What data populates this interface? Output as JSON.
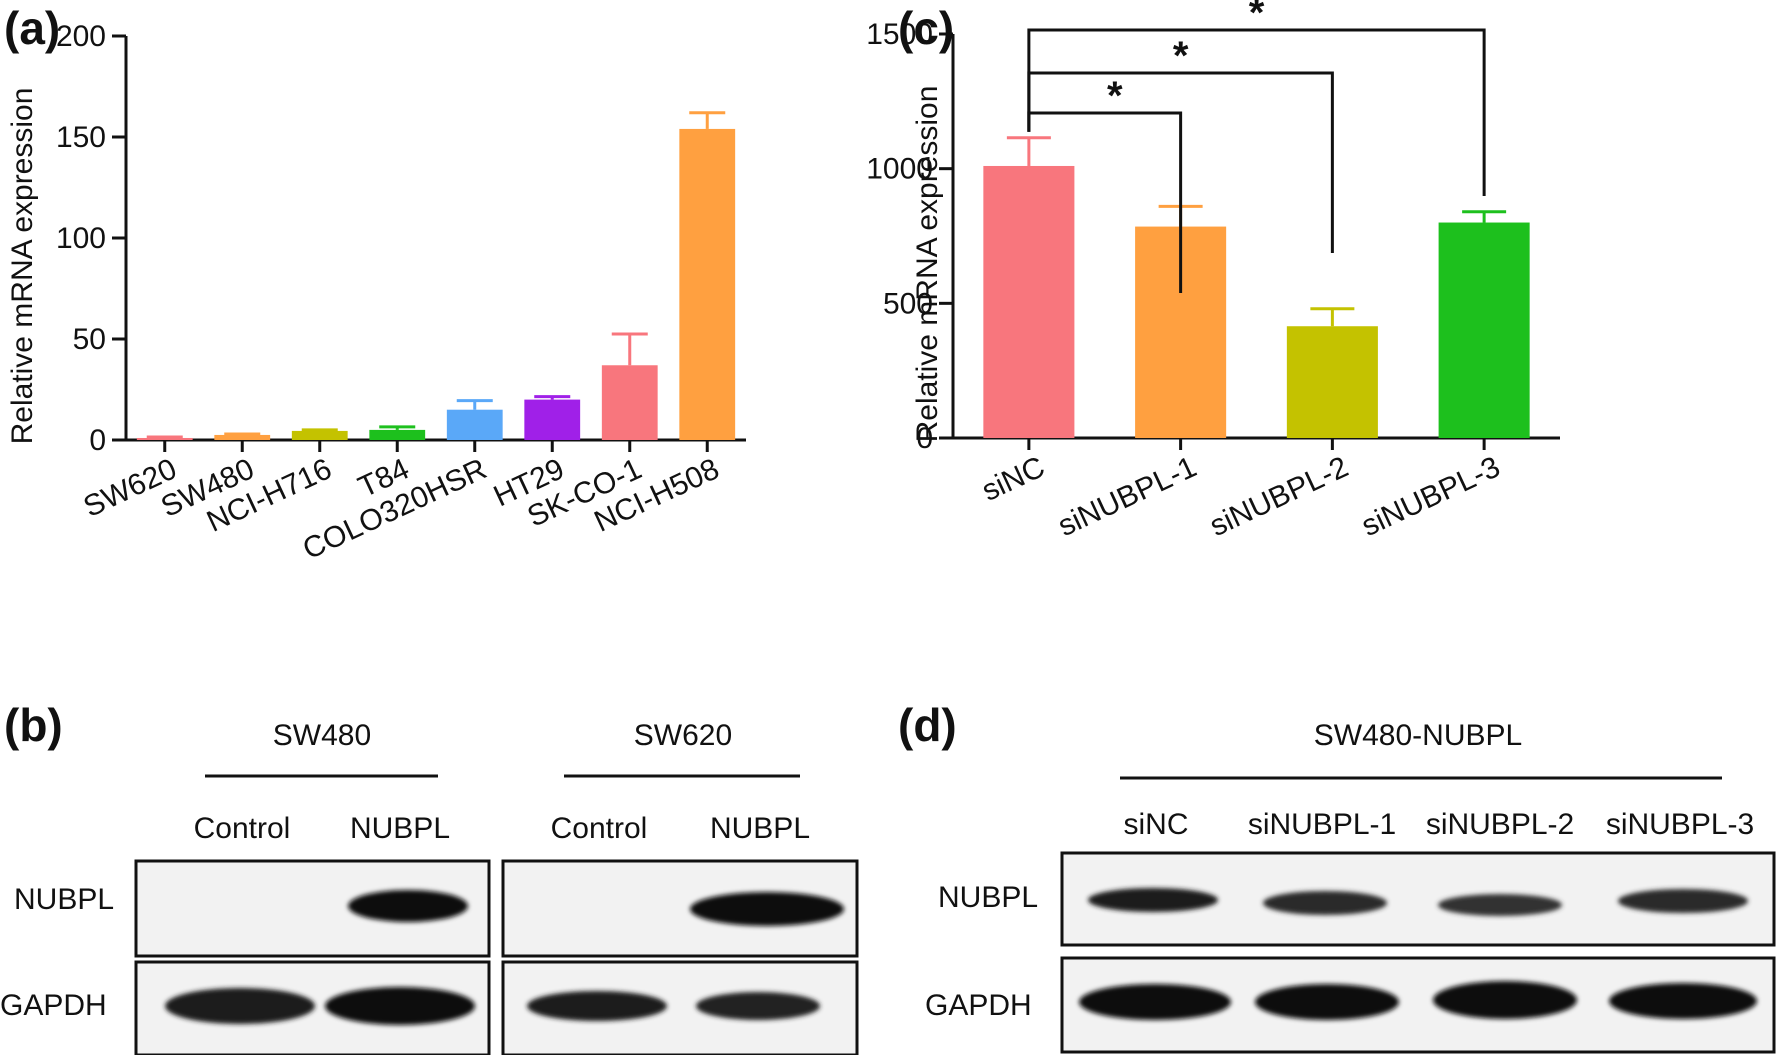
{
  "panels": {
    "a": "(a)",
    "b": "(b)",
    "c": "(c)",
    "d": "(d)"
  },
  "chart_data": [
    {
      "panel": "(a)",
      "type": "bar",
      "title": "",
      "xlabel": "",
      "ylabel": "Relative mRNA expression",
      "ylim": [
        0,
        200
      ],
      "yticks": [
        0,
        50,
        100,
        150,
        200
      ],
      "categories": [
        "SW620",
        "SW480",
        "NCI-H716",
        "T84",
        "COLO320HSR",
        "HT29",
        "SK-CO-1",
        "NCI-H508"
      ],
      "values": [
        1,
        2.5,
        4.5,
        5,
        15,
        20,
        37,
        154
      ],
      "errors": [
        0.5,
        0.5,
        0.5,
        1.5,
        4.5,
        1.5,
        15.5,
        8
      ],
      "colors": [
        "#f8767d",
        "#ffa040",
        "#c4c200",
        "#1dc01d",
        "#5aa8f8",
        "#a020e8",
        "#f8767d",
        "#ffa040"
      ],
      "grid": false,
      "legend": "none"
    },
    {
      "panel": "(c)",
      "type": "bar",
      "title": "",
      "xlabel": "",
      "ylabel": "Relative mRNA expression",
      "ylim": [
        0,
        1500
      ],
      "yticks": [
        0,
        500,
        1000,
        1500
      ],
      "categories": [
        "siNC",
        "siNUBPL-1",
        "siNUBPL-2",
        "siNUBPL-3"
      ],
      "values": [
        1010,
        785,
        415,
        800
      ],
      "errors": [
        105,
        75,
        65,
        40
      ],
      "colors": [
        "#f8767d",
        "#ffa040",
        "#c4c200",
        "#1dc01d"
      ],
      "significance": [
        {
          "from": "siNC",
          "to": "siNUBPL-1",
          "label": "*"
        },
        {
          "from": "siNC",
          "to": "siNUBPL-2",
          "label": "*"
        },
        {
          "from": "siNC",
          "to": "siNUBPL-3",
          "label": "*"
        }
      ],
      "grid": false,
      "legend": "none"
    }
  ],
  "blot_b": {
    "groups": [
      {
        "name": "SW480",
        "lanes": [
          "Control",
          "NUBPL"
        ],
        "nubpl_intensity": [
          0.0,
          1.0
        ],
        "gapdh_intensity": [
          1.0,
          1.0
        ]
      },
      {
        "name": "SW620",
        "lanes": [
          "Control",
          "NUBPL"
        ],
        "nubpl_intensity": [
          0.0,
          1.0
        ],
        "gapdh_intensity": [
          0.9,
          0.85
        ]
      }
    ],
    "rows": [
      "NUBPL",
      "GAPDH"
    ]
  },
  "blot_d": {
    "group": "SW480-NUBPL",
    "lanes": [
      "siNC",
      "siNUBPL-1",
      "siNUBPL-2",
      "siNUBPL-3"
    ],
    "nubpl_intensity": [
      0.85,
      0.7,
      0.6,
      0.7
    ],
    "gapdh_intensity": [
      1.0,
      1.0,
      1.0,
      1.0
    ],
    "rows": [
      "NUBPL",
      "GAPDH"
    ]
  }
}
